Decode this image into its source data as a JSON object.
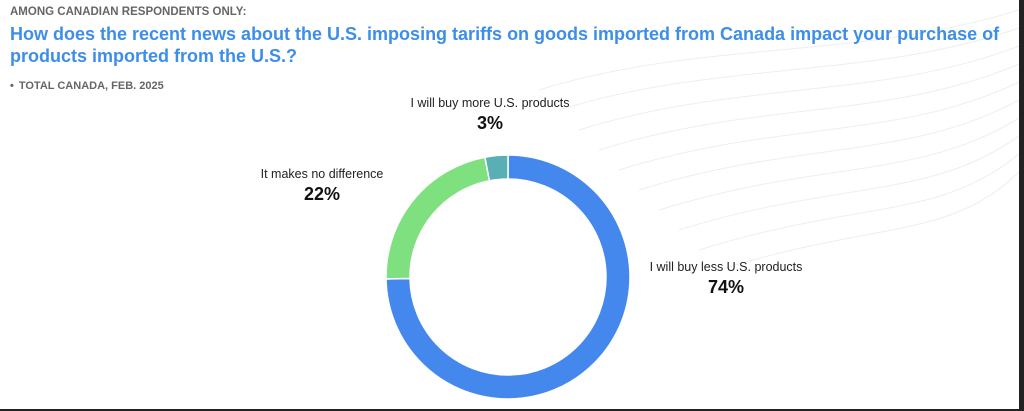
{
  "header": {
    "eyebrow": "AMONG CANADIAN RESPONDENTS ONLY:",
    "question": "How does the recent news about the U.S. imposing tariffs on goods imported from Canada impact your purchase of products imported from the U.S.?",
    "base_bullet": "•",
    "base": "TOTAL CANADA, FEB. 2025"
  },
  "chart_data": {
    "type": "pie",
    "style": "donut",
    "title": "How does the recent news about the U.S. imposing tariffs on goods imported from Canada impact your purchase of products imported from the U.S.?",
    "slices": [
      {
        "label": "I will buy less U.S. products",
        "value": 74,
        "value_label": "74%",
        "color": "#4488ee"
      },
      {
        "label": "It makes no difference",
        "value": 22,
        "value_label": "22%",
        "color": "#7fe07f"
      },
      {
        "label": "I will buy more U.S. products",
        "value": 3,
        "value_label": "3%",
        "color": "#5aafb4"
      }
    ],
    "start_angle_deg": 0,
    "direction": "clockwise",
    "legend": "none"
  }
}
